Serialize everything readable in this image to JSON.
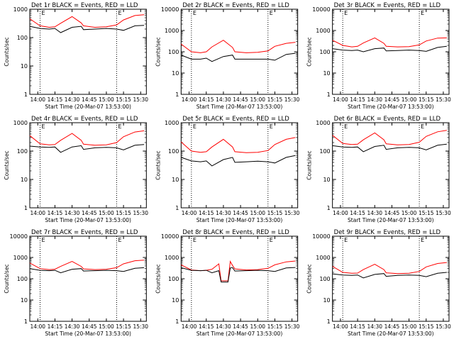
{
  "colors": {
    "events": "#000000",
    "lld": "#ff0000",
    "axis": "#000000",
    "background": "#ffffff"
  },
  "chart_data": [
    {
      "type": "line",
      "title": "Det 1r BLACK = Events, RED = LLD",
      "ylabel": "Counts/sec",
      "xlabel": "Start Time (20-Mar-07 13:53:00)",
      "yscale": "log",
      "ylim": [
        1,
        1000
      ],
      "ytick_labels": [
        "1",
        "10",
        "100",
        "1000"
      ],
      "xtick_labels": [
        "14:00",
        "14:15",
        "14:30",
        "14:45",
        "15:00",
        "15:15",
        "15:30"
      ],
      "xlim": [
        "13:53",
        "15:35"
      ],
      "marker_lines": [
        "14:02",
        "15:09"
      ],
      "corner_labels": [
        "E",
        "E"
      ],
      "series": [
        {
          "name": "Events",
          "color": "black",
          "x": [
            "13:53",
            "14:02",
            "14:10",
            "14:15",
            "14:20",
            "14:30",
            "14:38",
            "14:40",
            "14:50",
            "15:00",
            "15:09",
            "15:15",
            "15:25",
            "15:33"
          ],
          "y": [
            250,
            210,
            200,
            210,
            150,
            230,
            250,
            190,
            200,
            210,
            200,
            180,
            260,
            270
          ]
        },
        {
          "name": "LLD",
          "color": "red",
          "x": [
            "13:53",
            "14:02",
            "14:10",
            "14:15",
            "14:20",
            "14:30",
            "14:38",
            "14:40",
            "14:50",
            "15:00",
            "15:09",
            "15:15",
            "15:25",
            "15:33"
          ],
          "y": [
            460,
            260,
            230,
            240,
            320,
            550,
            330,
            260,
            230,
            240,
            280,
            420,
            600,
            640
          ]
        }
      ]
    },
    {
      "type": "line",
      "title": "Det 2r BLACK = Events, RED = LLD",
      "ylabel": "Counts/sec",
      "xlabel": "Start Time (20-Mar-07 13:53:00)",
      "yscale": "log",
      "ylim": [
        1,
        10000
      ],
      "ytick_labels": [
        "1",
        "10",
        "100",
        "1000",
        "10000"
      ],
      "xtick_labels": [
        "14:00",
        "14:15",
        "14:30",
        "14:45",
        "15:00",
        "15:15",
        "15:30"
      ],
      "xlim": [
        "13:53",
        "15:35"
      ],
      "marker_lines": [
        "14:02",
        "15:09"
      ],
      "corner_labels": [
        "E",
        "E"
      ],
      "series": [
        {
          "name": "Events",
          "color": "black",
          "x": [
            "13:53",
            "14:02",
            "14:10",
            "14:15",
            "14:20",
            "14:30",
            "14:38",
            "14:40",
            "14:50",
            "15:00",
            "15:09",
            "15:15",
            "15:25",
            "15:33"
          ],
          "y": [
            70,
            45,
            45,
            50,
            35,
            60,
            70,
            45,
            45,
            45,
            45,
            40,
            75,
            85
          ]
        },
        {
          "name": "LLD",
          "color": "red",
          "x": [
            "13:53",
            "14:02",
            "14:10",
            "14:15",
            "14:20",
            "14:30",
            "14:38",
            "14:40",
            "14:50",
            "15:00",
            "15:09",
            "15:15",
            "15:25",
            "15:33"
          ],
          "y": [
            230,
            100,
            90,
            100,
            170,
            350,
            160,
            100,
            90,
            95,
            110,
            180,
            250,
            280
          ]
        }
      ]
    },
    {
      "type": "line",
      "title": "Det 3r BLACK = Events, RED = LLD",
      "ylabel": "Counts/sec",
      "xlabel": "Start Time (20-Mar-07 13:53:00)",
      "yscale": "log",
      "ylim": [
        1,
        10000
      ],
      "ytick_labels": [
        "1",
        "10",
        "100",
        "1000",
        "10000"
      ],
      "xtick_labels": [
        "14:00",
        "14:15",
        "14:30",
        "14:45",
        "15:00",
        "15:15",
        "15:30"
      ],
      "xlim": [
        "13:53",
        "15:35"
      ],
      "marker_lines": [
        "14:02",
        "15:09"
      ],
      "corner_labels": [
        "E",
        "E"
      ],
      "series": [
        {
          "name": "Events",
          "color": "black",
          "x": [
            "13:53",
            "14:02",
            "14:10",
            "14:15",
            "14:20",
            "14:30",
            "14:38",
            "14:40",
            "14:50",
            "15:00",
            "15:09",
            "15:15",
            "15:25",
            "15:33"
          ],
          "y": [
            140,
            120,
            115,
            120,
            100,
            140,
            150,
            110,
            115,
            120,
            115,
            105,
            160,
            180
          ]
        },
        {
          "name": "LLD",
          "color": "red",
          "x": [
            "13:53",
            "14:02",
            "14:10",
            "14:15",
            "14:20",
            "14:30",
            "14:38",
            "14:40",
            "14:50",
            "15:00",
            "15:09",
            "15:15",
            "15:25",
            "15:33"
          ],
          "y": [
            350,
            200,
            170,
            180,
            260,
            450,
            250,
            180,
            170,
            175,
            210,
            320,
            440,
            450
          ]
        }
      ]
    },
    {
      "type": "line",
      "title": "Det 4r BLACK = Events, RED = LLD",
      "ylabel": "Counts/sec",
      "xlabel": "Start Time (20-Mar-07 13:53:00)",
      "yscale": "log",
      "ylim": [
        1,
        1000
      ],
      "ytick_labels": [
        "1",
        "10",
        "100",
        "1000"
      ],
      "xtick_labels": [
        "14:00",
        "14:15",
        "14:30",
        "14:45",
        "15:00",
        "15:15",
        "15:30"
      ],
      "xlim": [
        "13:53",
        "15:35"
      ],
      "marker_lines": [
        "14:02",
        "15:09"
      ],
      "corner_labels": [
        "E",
        "E"
      ],
      "series": [
        {
          "name": "Events",
          "color": "black",
          "x": [
            "13:53",
            "14:02",
            "14:10",
            "14:15",
            "14:20",
            "14:30",
            "14:38",
            "14:40",
            "14:50",
            "15:00",
            "15:09",
            "15:15",
            "15:25",
            "15:33"
          ],
          "y": [
            150,
            140,
            135,
            140,
            90,
            140,
            155,
            115,
            130,
            135,
            130,
            110,
            160,
            170
          ]
        },
        {
          "name": "LLD",
          "color": "red",
          "x": [
            "13:53",
            "14:02",
            "14:10",
            "14:15",
            "14:20",
            "14:30",
            "14:38",
            "14:40",
            "14:50",
            "15:00",
            "15:09",
            "15:15",
            "15:25",
            "15:33"
          ],
          "y": [
            350,
            180,
            165,
            170,
            240,
            420,
            240,
            175,
            160,
            165,
            200,
            320,
            470,
            520
          ]
        }
      ]
    },
    {
      "type": "line",
      "title": "Det 5r BLACK = Events, RED = LLD",
      "ylabel": "Counts/sec",
      "xlabel": "Start Time (20-Mar-07 13:53:00)",
      "yscale": "log",
      "ylim": [
        1,
        1000
      ],
      "ytick_labels": [
        "1",
        "10",
        "100",
        "1000"
      ],
      "xtick_labels": [
        "14:00",
        "14:15",
        "14:30",
        "14:45",
        "15:00",
        "15:15",
        "15:30"
      ],
      "xlim": [
        "13:53",
        "15:35"
      ],
      "marker_lines": [
        "14:02",
        "15:09"
      ],
      "corner_labels": [
        "E",
        "E"
      ],
      "series": [
        {
          "name": "Events",
          "color": "black",
          "x": [
            "13:53",
            "14:02",
            "14:10",
            "14:15",
            "14:20",
            "14:30",
            "14:38",
            "14:40",
            "14:50",
            "15:00",
            "15:09",
            "15:15",
            "15:25",
            "15:33"
          ],
          "y": [
            60,
            45,
            42,
            45,
            30,
            50,
            60,
            40,
            42,
            44,
            42,
            38,
            60,
            70
          ]
        },
        {
          "name": "LLD",
          "color": "red",
          "x": [
            "13:53",
            "14:02",
            "14:10",
            "14:15",
            "14:20",
            "14:30",
            "14:38",
            "14:40",
            "14:50",
            "15:00",
            "15:09",
            "15:15",
            "15:25",
            "15:33"
          ],
          "y": [
            210,
            100,
            90,
            95,
            140,
            260,
            140,
            95,
            88,
            90,
            105,
            170,
            260,
            300
          ]
        }
      ]
    },
    {
      "type": "line",
      "title": "Det 6r BLACK = Events, RED = LLD",
      "ylabel": "Counts/sec",
      "xlabel": "Start Time (20-Mar-07 13:53:00)",
      "yscale": "log",
      "ylim": [
        1,
        1000
      ],
      "ytick_labels": [
        "1",
        "10",
        "100",
        "1000"
      ],
      "xtick_labels": [
        "14:00",
        "14:15",
        "14:30",
        "14:45",
        "15:00",
        "15:15",
        "15:30"
      ],
      "xlim": [
        "13:53",
        "15:35"
      ],
      "marker_lines": [
        "14:02",
        "15:09"
      ],
      "corner_labels": [
        "E",
        "E"
      ],
      "series": [
        {
          "name": "Events",
          "color": "black",
          "x": [
            "13:53",
            "14:02",
            "14:10",
            "14:15",
            "14:20",
            "14:30",
            "14:38",
            "14:40",
            "14:50",
            "15:00",
            "15:09",
            "15:15",
            "15:25",
            "15:33"
          ],
          "y": [
            155,
            140,
            135,
            140,
            95,
            145,
            160,
            115,
            130,
            135,
            130,
            110,
            160,
            175
          ]
        },
        {
          "name": "LLD",
          "color": "red",
          "x": [
            "13:53",
            "14:02",
            "14:10",
            "14:15",
            "14:20",
            "14:30",
            "14:38",
            "14:40",
            "14:50",
            "15:00",
            "15:09",
            "15:15",
            "15:25",
            "15:33"
          ],
          "y": [
            360,
            185,
            170,
            175,
            250,
            440,
            250,
            180,
            165,
            170,
            205,
            330,
            480,
            540
          ]
        }
      ]
    },
    {
      "type": "line",
      "title": "Det 7r BLACK = Events, RED = LLD",
      "ylabel": "Counts/sec",
      "xlabel": "Start Time (20-Mar-07 13:53:00)",
      "yscale": "log",
      "ylim": [
        1,
        10000
      ],
      "ytick_labels": [
        "1",
        "10",
        "100",
        "1000",
        "10000"
      ],
      "xtick_labels": [
        "14:00",
        "14:15",
        "14:30",
        "14:45",
        "15:00",
        "15:15",
        "15:30"
      ],
      "xlim": [
        "13:53",
        "15:35"
      ],
      "marker_lines": [
        "14:02",
        "15:09"
      ],
      "corner_labels": [
        "E",
        "E"
      ],
      "series": [
        {
          "name": "Events",
          "color": "black",
          "x": [
            "13:53",
            "14:02",
            "14:10",
            "14:15",
            "14:20",
            "14:30",
            "14:38",
            "14:40",
            "14:50",
            "15:00",
            "15:09",
            "15:15",
            "15:25",
            "15:33"
          ],
          "y": [
            300,
            250,
            240,
            250,
            190,
            280,
            300,
            230,
            240,
            250,
            240,
            220,
            310,
            330
          ]
        },
        {
          "name": "LLD",
          "color": "red",
          "x": [
            "13:53",
            "14:02",
            "14:10",
            "14:15",
            "14:20",
            "14:30",
            "14:38",
            "14:40",
            "14:50",
            "15:00",
            "15:09",
            "15:15",
            "15:25",
            "15:33"
          ],
          "y": [
            550,
            300,
            270,
            280,
            380,
            650,
            380,
            290,
            270,
            280,
            330,
            500,
            700,
            750
          ]
        }
      ]
    },
    {
      "type": "line",
      "title": "Det 8r BLACK = Events, RED = LLD",
      "ylabel": "Counts/sec",
      "xlabel": "Start Time (20-Mar-07 13:53:00)",
      "yscale": "log",
      "ylim": [
        1,
        10000
      ],
      "ytick_labels": [
        "1",
        "10",
        "100",
        "1000",
        "10000"
      ],
      "xtick_labels": [
        "14:00",
        "14:15",
        "14:30",
        "14:45",
        "15:00",
        "15:15",
        "15:30"
      ],
      "xlim": [
        "13:53",
        "15:35"
      ],
      "marker_lines": [
        "14:02",
        "15:09"
      ],
      "corner_labels": [
        "E",
        "E"
      ],
      "series": [
        {
          "name": "Events",
          "color": "black",
          "x": [
            "13:53",
            "14:02",
            "14:10",
            "14:15",
            "14:20",
            "14:26",
            "14:28",
            "14:34",
            "14:36",
            "14:38",
            "14:40",
            "14:50",
            "15:00",
            "15:09",
            "15:15",
            "15:25",
            "15:33"
          ],
          "y": [
            330,
            250,
            240,
            250,
            190,
            240,
            70,
            70,
            320,
            330,
            230,
            240,
            250,
            240,
            220,
            320,
            340
          ]
        },
        {
          "name": "LLD",
          "color": "red",
          "x": [
            "13:53",
            "14:02",
            "14:10",
            "14:15",
            "14:20",
            "14:26",
            "14:28",
            "14:34",
            "14:36",
            "14:38",
            "14:40",
            "14:50",
            "15:00",
            "15:09",
            "15:15",
            "15:25",
            "15:33"
          ],
          "y": [
            450,
            260,
            240,
            250,
            280,
            500,
            80,
            80,
            650,
            420,
            290,
            260,
            270,
            310,
            450,
            620,
            680
          ]
        }
      ]
    },
    {
      "type": "line",
      "title": "Det 9r BLACK = Events, RED = LLD",
      "ylabel": "Counts/sec",
      "xlabel": "Start Time (20-Mar-07 13:53:00)",
      "yscale": "log",
      "ylim": [
        1,
        10000
      ],
      "ytick_labels": [
        "1",
        "10",
        "100",
        "1000",
        "10000"
      ],
      "xtick_labels": [
        "14:00",
        "14:15",
        "14:30",
        "14:45",
        "15:00",
        "15:15",
        "15:30"
      ],
      "xlim": [
        "13:53",
        "15:35"
      ],
      "marker_lines": [
        "14:02",
        "15:09"
      ],
      "corner_labels": [
        "E",
        "E"
      ],
      "series": [
        {
          "name": "Events",
          "color": "black",
          "x": [
            "13:53",
            "14:02",
            "14:10",
            "14:15",
            "14:20",
            "14:30",
            "14:38",
            "14:40",
            "14:50",
            "15:00",
            "15:09",
            "15:15",
            "15:25",
            "15:33"
          ],
          "y": [
            170,
            150,
            145,
            150,
            110,
            160,
            175,
            130,
            145,
            150,
            145,
            125,
            180,
            200
          ]
        },
        {
          "name": "LLD",
          "color": "red",
          "x": [
            "13:53",
            "14:02",
            "14:10",
            "14:15",
            "14:20",
            "14:30",
            "14:38",
            "14:40",
            "14:50",
            "15:00",
            "15:09",
            "15:15",
            "15:25",
            "15:33"
          ],
          "y": [
            380,
            200,
            180,
            185,
            270,
            480,
            270,
            190,
            175,
            180,
            220,
            360,
            520,
            580
          ]
        }
      ]
    }
  ]
}
